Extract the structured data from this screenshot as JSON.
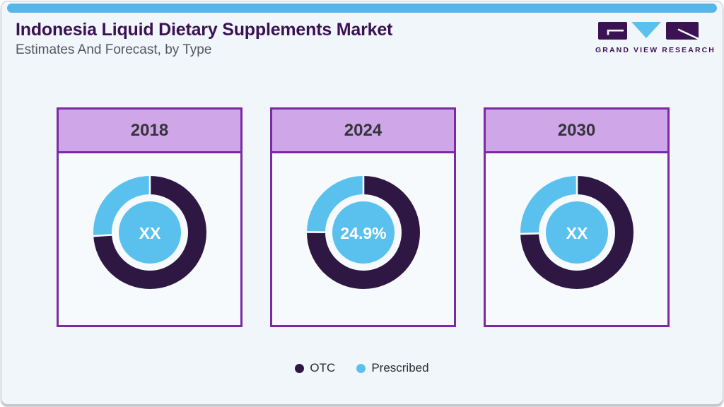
{
  "header": {
    "title": "Indonesia Liquid Dietary Supplements Market",
    "subtitle": "Estimates And Forecast, by Type"
  },
  "brand": {
    "name": "GRAND VIEW RESEARCH"
  },
  "colors": {
    "top_bar": "#57b6e8",
    "title_text": "#3a1254",
    "page_bg": "#f1f6fa",
    "card_border": "#7a2aa4",
    "card_header_bg": "#cfa6e7",
    "otc": "#2f1743",
    "prescribed": "#5ac1ef",
    "hub_fill": "#5ac1ef",
    "logo_dark": "#3b1353",
    "logo_blue": "#5ac1ef"
  },
  "legend": {
    "items": [
      {
        "label": "OTC",
        "color": "#2f1743"
      },
      {
        "label": "Prescribed",
        "color": "#5ac1ef"
      }
    ]
  },
  "chart_data": {
    "type": "donut",
    "title": "Indonesia Liquid Dietary Supplements Market Estimates And Forecast, by Type",
    "legend_position": "bottom",
    "legend_labels": [
      "OTC",
      "Prescribed"
    ],
    "charts": [
      {
        "year": "2018",
        "center_label": "XX",
        "series": [
          {
            "name": "OTC",
            "value": 74.0
          },
          {
            "name": "Prescribed",
            "value": 26.0
          }
        ]
      },
      {
        "year": "2024",
        "center_label": "24.9%",
        "series": [
          {
            "name": "OTC",
            "value": 75.1
          },
          {
            "name": "Prescribed",
            "value": 24.9
          }
        ]
      },
      {
        "year": "2030",
        "center_label": "XX",
        "series": [
          {
            "name": "OTC",
            "value": 74.6
          },
          {
            "name": "Prescribed",
            "value": 25.4
          }
        ]
      }
    ]
  }
}
